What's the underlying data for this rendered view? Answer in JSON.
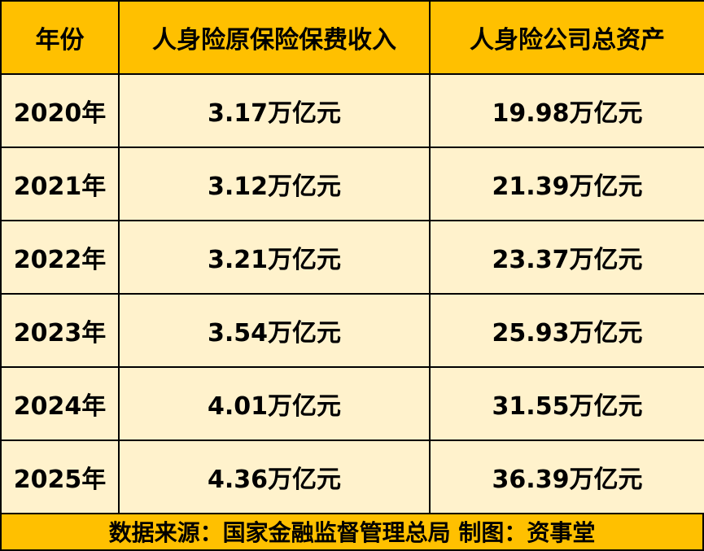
{
  "header": [
    "年份",
    "人身险原保险保费收入",
    "人身险公司总资产"
  ],
  "rows": [
    [
      "2020年",
      "3.17万亿元",
      "19.98万亿元"
    ],
    [
      "2021年",
      "3.12万亿元",
      "21.39万亿元"
    ],
    [
      "2022年",
      "3.21万亿元",
      "23.37万亿元"
    ],
    [
      "2023年",
      "3.54万亿元",
      "25.93万亿元"
    ],
    [
      "2024年",
      "4.01万亿元",
      "31.55万亿元"
    ],
    [
      "2025年",
      "4.36万亿元",
      "36.39万亿元"
    ]
  ],
  "footer": "数据来源：国家金融监督管理总局 制图：资事堂",
  "colors": {
    "header_bg": "#FFC000",
    "cell_bg": "#FFF2CC"
  }
}
